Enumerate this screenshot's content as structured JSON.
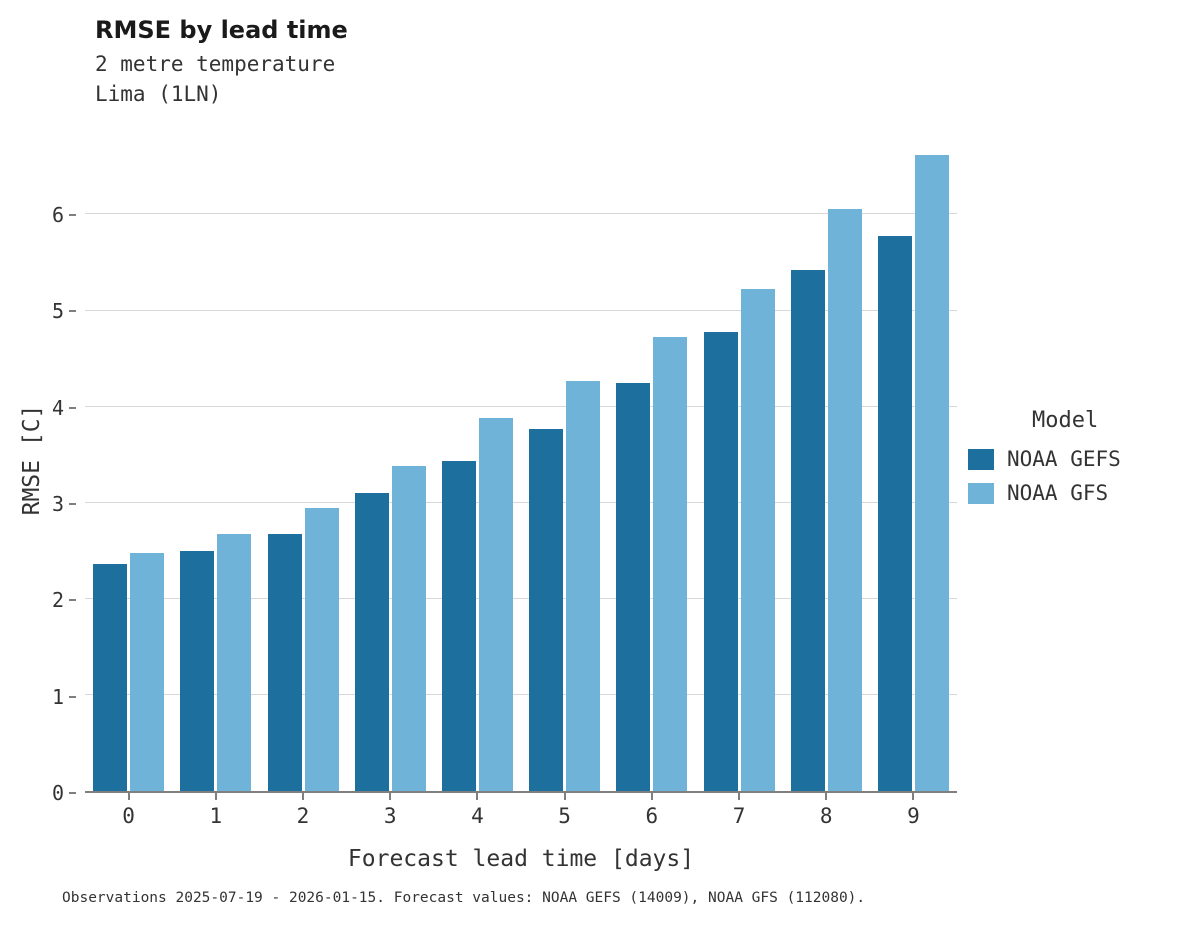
{
  "chart_data": {
    "type": "bar",
    "title": "RMSE by lead time",
    "subtitle": "2 metre temperature",
    "subtitle2": "Lima (1LN)",
    "xlabel": "Forecast lead time [days]",
    "ylabel": "RMSE [C]",
    "categories": [
      "0",
      "1",
      "2",
      "3",
      "4",
      "5",
      "6",
      "7",
      "8",
      "9"
    ],
    "series": [
      {
        "name": "NOAA GEFS",
        "color": "#1d6f9e",
        "values": [
          2.36,
          2.5,
          2.68,
          3.1,
          3.43,
          3.77,
          4.25,
          4.78,
          5.42,
          5.78
        ]
      },
      {
        "name": "NOAA GFS",
        "color": "#6fb3d9",
        "values": [
          2.48,
          2.68,
          2.95,
          3.38,
          3.88,
          4.27,
          4.72,
          5.22,
          6.06,
          6.62
        ]
      }
    ],
    "yticks": [
      0,
      1,
      2,
      3,
      4,
      5,
      6
    ],
    "ylim": [
      0,
      6.9
    ],
    "grid": "horizontal",
    "legend_title": "Model",
    "legend_position": "right"
  },
  "colors": {
    "axis_line": "#7f7f7f",
    "gridline": "#d8d8d8",
    "text": "#333333"
  },
  "footer": {
    "text": "Observations 2025-07-19 - 2026-01-15. Forecast values: NOAA GEFS (14009), NOAA GFS (112080)."
  }
}
